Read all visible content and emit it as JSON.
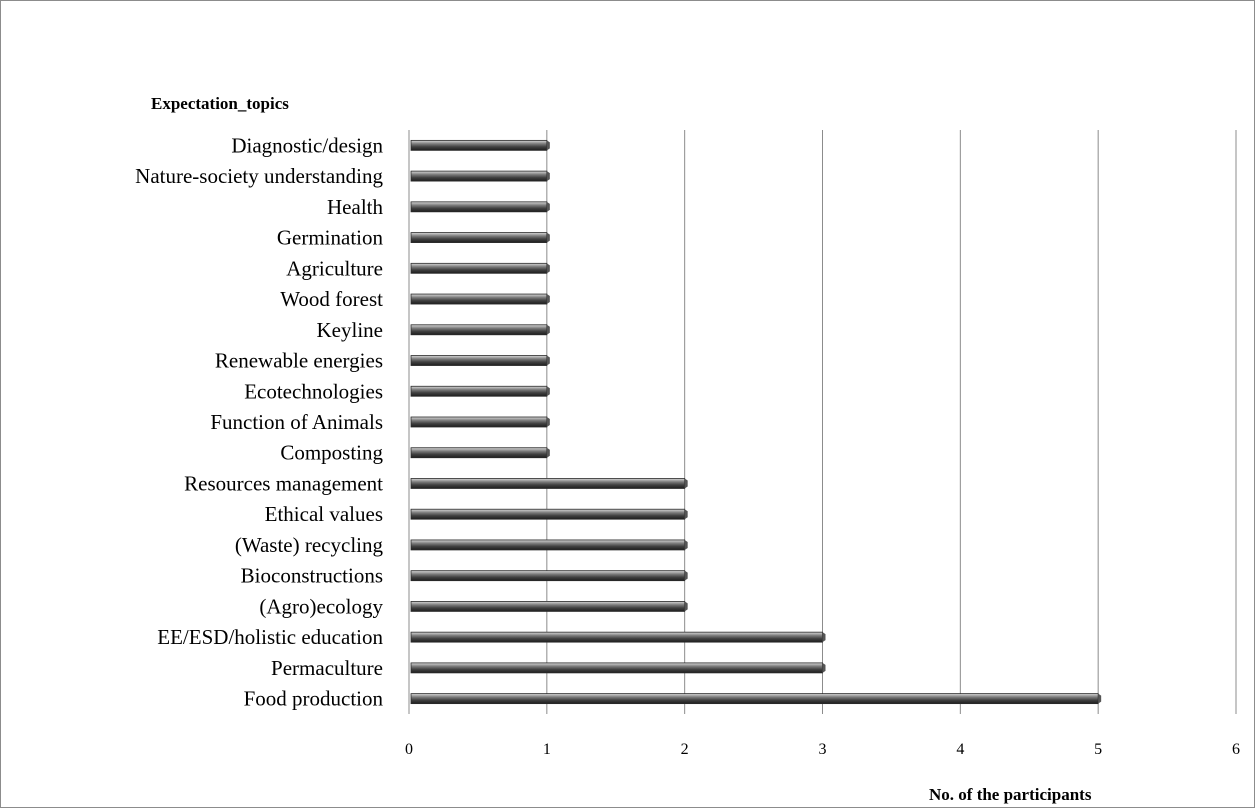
{
  "chart_data": {
    "type": "bar",
    "orientation": "horizontal",
    "ylabel": "Expectation_topics",
    "xlabel": "No. of the participants",
    "xlim": [
      0,
      6
    ],
    "xticks": [
      0,
      1,
      2,
      3,
      4,
      5,
      6
    ],
    "grid": "vertical",
    "legend": "none",
    "bar_color": "#5a5a5a",
    "categories": [
      "Diagnostic/design",
      "Nature-society understanding",
      "Health",
      "Germination",
      "Agriculture",
      "Wood forest",
      "Keyline",
      "Renewable energies",
      "Ecotechnologies",
      "Function of Animals",
      "Composting",
      "Resources management",
      "Ethical values",
      "(Waste) recycling",
      "Bioconstructions",
      "(Agro)ecology",
      "EE/ESD/holistic education",
      "Permaculture",
      "Food production"
    ],
    "values": [
      1,
      1,
      1,
      1,
      1,
      1,
      1,
      1,
      1,
      1,
      1,
      2,
      2,
      2,
      2,
      2,
      3,
      3,
      5
    ]
  }
}
